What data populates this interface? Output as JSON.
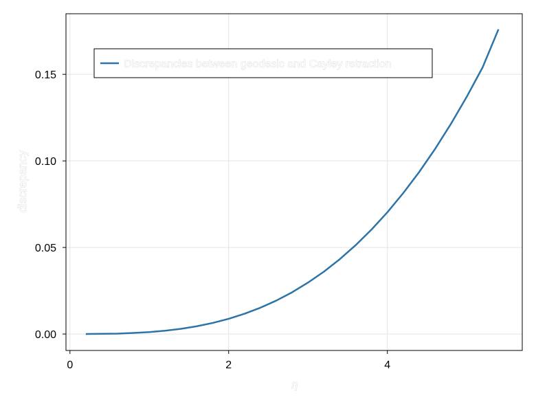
{
  "chart_data": {
    "type": "line",
    "title": "",
    "xlabel": "η",
    "ylabel": "discrepancy",
    "xlim": [
      -0.05,
      5.7
    ],
    "ylim": [
      -0.0095,
      0.185
    ],
    "x_ticks": [
      0,
      2,
      4
    ],
    "x_tick_labels": [
      "0",
      "2",
      "4"
    ],
    "y_ticks": [
      0.0,
      0.05,
      0.1,
      0.15
    ],
    "y_tick_labels": [
      "0.00",
      "0.05",
      "0.10",
      "0.15"
    ],
    "grid": true,
    "legend": {
      "position": "top-left",
      "entries": [
        "Discrepancies between geodesic and Cayley retraction"
      ]
    },
    "colors": {
      "series": "#2c73a7",
      "grid": "#e4e4e4",
      "frame": "#000000",
      "light_text": "#c8c8c8"
    },
    "series": [
      {
        "name": "Discrepancies between geodesic and Cayley retraction",
        "x": [
          0.2,
          0.4,
          0.6,
          0.8,
          1.0,
          1.2,
          1.4,
          1.6,
          1.8,
          2.0,
          2.2,
          2.4,
          2.6,
          2.8,
          3.0,
          3.2,
          3.4,
          3.6,
          3.8,
          4.0,
          4.2,
          4.4,
          4.6,
          4.8,
          5.0,
          5.2,
          5.4
        ],
        "y": [
          0.0,
          0.0001,
          0.0002,
          0.0006,
          0.0011,
          0.0019,
          0.003,
          0.0045,
          0.0064,
          0.0088,
          0.0117,
          0.0152,
          0.0193,
          0.0241,
          0.0297,
          0.036,
          0.0432,
          0.0513,
          0.0603,
          0.0703,
          0.0814,
          0.0935,
          0.1068,
          0.1213,
          0.137,
          0.154,
          0.176
        ]
      }
    ]
  }
}
